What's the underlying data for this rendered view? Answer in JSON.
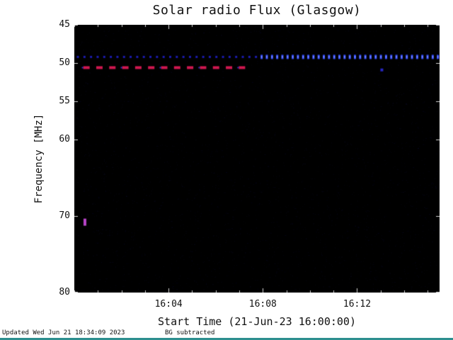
{
  "footer": {
    "updated": "Updated Wed Jun 21 18:34:09 2023",
    "bg_note": "BG subtracted",
    "divider_color": "#2d8f8f"
  },
  "chart_data": {
    "type": "heatmap",
    "title": "Solar radio Flux (Glasgow)",
    "xlabel": "Start Time (21-Jun-23 16:00:00)",
    "ylabel": "Frequency [MHz]",
    "x_range_min": [
      0,
      15.5
    ],
    "x_ticks": [
      {
        "t": 4,
        "label": "16:04"
      },
      {
        "t": 8,
        "label": "16:08"
      },
      {
        "t": 12,
        "label": "16:12"
      }
    ],
    "y_range_mhz": [
      45,
      80
    ],
    "y_ticks": [
      {
        "f": 45,
        "label": "45"
      },
      {
        "f": 50,
        "label": "50"
      },
      {
        "f": 55,
        "label": "55"
      },
      {
        "f": 60,
        "label": "60"
      },
      {
        "f": 70,
        "label": "70"
      },
      {
        "f": 80,
        "label": "80"
      }
    ],
    "plot_bg": "#000000",
    "axis_tick_color": "#ffffff",
    "noise": {
      "seed": 1234,
      "count": 4500
    },
    "features": [
      {
        "id": "interference-line-49mhz-left",
        "kind": "dotted-line",
        "freq": 49.2,
        "t0": 0.15,
        "t1": 7.95,
        "period": 0.28,
        "dot_w": 3,
        "dot_h": 3,
        "color": "#2020cf",
        "alpha": 0.85
      },
      {
        "id": "interference-line-49mhz-right",
        "kind": "dotted-line",
        "freq": 49.2,
        "t0": 7.95,
        "t1": 15.45,
        "period": 0.22,
        "dot_w": 3,
        "dot_h": 6,
        "color": "#3550ff",
        "core_color": "#8090ff",
        "alpha": 1
      },
      {
        "id": "burst-line-50.6mhz",
        "kind": "dashed-line",
        "freq": 50.6,
        "t0": 0.38,
        "t1": 7.3,
        "period": 0.55,
        "dash_w": 9,
        "dash_h": 4,
        "color": "#d01850",
        "fringe_color": "#3333cc",
        "alpha": 1
      },
      {
        "id": "point-70.8mhz",
        "kind": "spot",
        "freq": 70.8,
        "t": 0.45,
        "w": 4,
        "h": 10,
        "color": "#b844c8",
        "alpha": 1
      },
      {
        "id": "point-50.9mhz",
        "kind": "spot",
        "freq": 50.9,
        "t": 13.05,
        "w": 4,
        "h": 4,
        "color": "#2a2ad8",
        "alpha": 0.9
      }
    ]
  }
}
